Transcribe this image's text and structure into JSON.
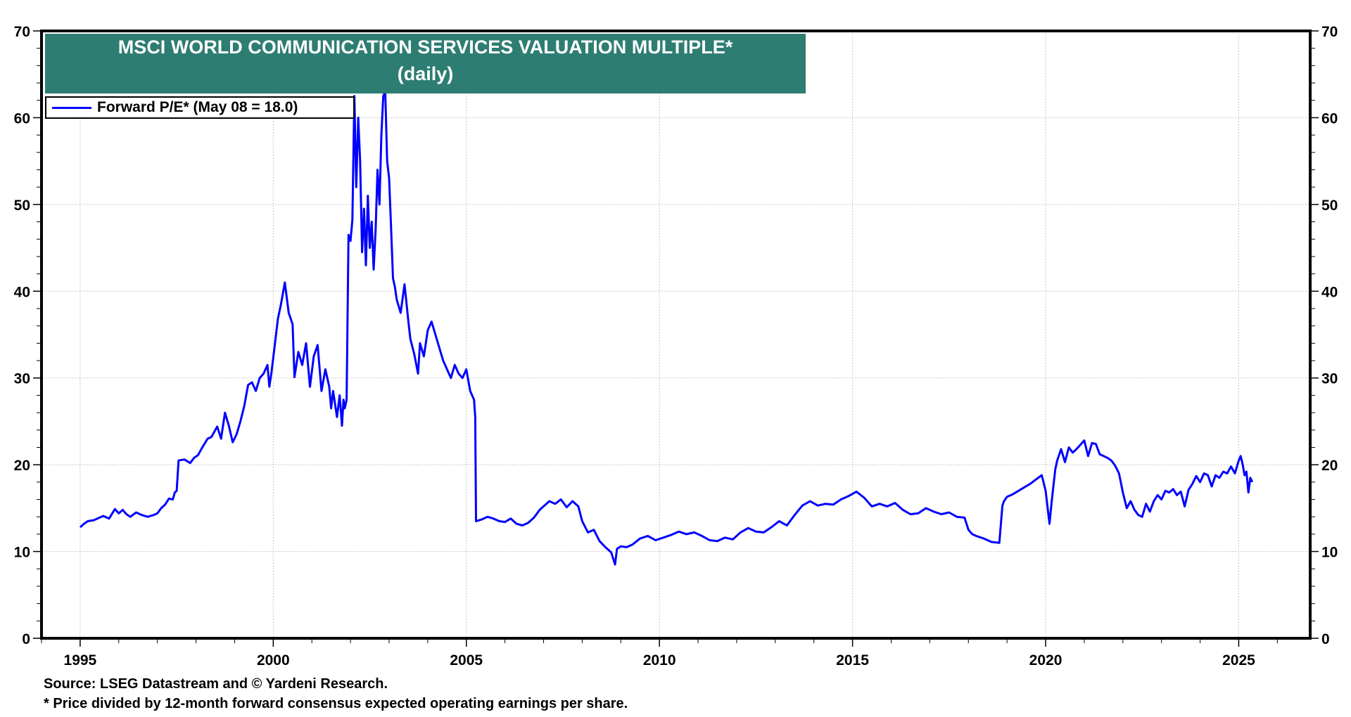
{
  "chart_data": {
    "type": "line",
    "title": "MSCI WORLD COMMUNICATION SERVICES VALUATION MULTIPLE*",
    "subtitle": "(daily)",
    "xlabel": "",
    "ylabel": "",
    "xlim": [
      1994.0,
      2026.85
    ],
    "ylim": [
      0,
      70
    ],
    "x_ticks": [
      1995,
      2000,
      2005,
      2010,
      2015,
      2020,
      2025
    ],
    "x_tick_labels": [
      "1995",
      "2000",
      "2005",
      "2010",
      "2015",
      "2020",
      "2025"
    ],
    "y_ticks": [
      0,
      10,
      20,
      30,
      40,
      50,
      60,
      70
    ],
    "y_tick_labels": [
      "0",
      "10",
      "20",
      "30",
      "40",
      "50",
      "60",
      "70"
    ],
    "y_axis_both_sides": true,
    "grid": true,
    "legend": "top-left",
    "series": [
      {
        "name": "Forward P/E* (May 08 = 18.0)",
        "color": "#0000ff",
        "x": [
          1995.0,
          1995.1,
          1995.2,
          1995.35,
          1995.5,
          1995.6,
          1995.75,
          1995.9,
          1996.0,
          1996.1,
          1996.2,
          1996.3,
          1996.45,
          1996.6,
          1996.75,
          1996.9,
          1997.0,
          1997.1,
          1997.2,
          1997.3,
          1997.4,
          1997.45,
          1997.5,
          1997.55,
          1997.7,
          1997.85,
          1997.95,
          1998.05,
          1998.15,
          1998.3,
          1998.4,
          1998.55,
          1998.65,
          1998.75,
          1998.85,
          1998.95,
          1999.05,
          1999.15,
          1999.25,
          1999.35,
          1999.45,
          1999.55,
          1999.65,
          1999.75,
          1999.85,
          1999.9,
          1999.95,
          2000.05,
          2000.12,
          2000.2,
          2000.3,
          2000.4,
          2000.5,
          2000.55,
          2000.65,
          2000.75,
          2000.85,
          2000.95,
          2001.05,
          2001.15,
          2001.25,
          2001.35,
          2001.45,
          2001.5,
          2001.55,
          2001.65,
          2001.72,
          2001.78,
          2001.82,
          2001.85,
          2001.9,
          2001.95,
          2002.0,
          2002.05,
          2002.1,
          2002.15,
          2002.2,
          2002.25,
          2002.3,
          2002.35,
          2002.4,
          2002.45,
          2002.5,
          2002.55,
          2002.6,
          2002.65,
          2002.7,
          2002.75,
          2002.8,
          2002.85,
          2002.9,
          2002.95,
          2003.0,
          2003.05,
          2003.1,
          2003.15,
          2003.2,
          2003.3,
          2003.4,
          2003.5,
          2003.55,
          2003.65,
          2003.75,
          2003.8,
          2003.9,
          2004.0,
          2004.1,
          2004.2,
          2004.3,
          2004.4,
          2004.5,
          2004.6,
          2004.7,
          2004.8,
          2004.9,
          2005.0,
          2005.1,
          2005.2,
          2005.23,
          2005.25,
          2005.4,
          2005.55,
          2005.7,
          2005.85,
          2006.0,
          2006.15,
          2006.3,
          2006.45,
          2006.6,
          2006.75,
          2006.9,
          2007.0,
          2007.15,
          2007.3,
          2007.45,
          2007.6,
          2007.75,
          2007.9,
          2008.0,
          2008.15,
          2008.3,
          2008.45,
          2008.6,
          2008.75,
          2008.85,
          2008.9,
          2009.0,
          2009.15,
          2009.3,
          2009.5,
          2009.7,
          2009.9,
          2010.1,
          2010.3,
          2010.5,
          2010.7,
          2010.9,
          2011.1,
          2011.3,
          2011.5,
          2011.7,
          2011.9,
          2012.1,
          2012.3,
          2012.5,
          2012.7,
          2012.9,
          2013.1,
          2013.3,
          2013.5,
          2013.7,
          2013.9,
          2014.1,
          2014.3,
          2014.5,
          2014.7,
          2014.9,
          2015.1,
          2015.3,
          2015.5,
          2015.7,
          2015.9,
          2016.1,
          2016.3,
          2016.5,
          2016.7,
          2016.9,
          2017.1,
          2017.3,
          2017.5,
          2017.7,
          2017.9,
          2018.0,
          2018.1,
          2018.2,
          2018.4,
          2018.6,
          2018.8,
          2018.88,
          2018.92,
          2019.0,
          2019.15,
          2019.3,
          2019.45,
          2019.6,
          2019.75,
          2019.9,
          2020.0,
          2020.1,
          2020.15,
          2020.2,
          2020.25,
          2020.3,
          2020.4,
          2020.5,
          2020.6,
          2020.7,
          2020.8,
          2020.9,
          2021.0,
          2021.1,
          2021.2,
          2021.3,
          2021.4,
          2021.5,
          2021.6,
          2021.7,
          2021.8,
          2021.9,
          2022.0,
          2022.1,
          2022.2,
          2022.3,
          2022.4,
          2022.5,
          2022.6,
          2022.7,
          2022.8,
          2022.9,
          2023.0,
          2023.1,
          2023.2,
          2023.3,
          2023.4,
          2023.5,
          2023.6,
          2023.7,
          2023.8,
          2023.9,
          2024.0,
          2024.1,
          2024.2,
          2024.3,
          2024.4,
          2024.5,
          2024.6,
          2024.7,
          2024.8,
          2024.9,
          2025.0,
          2025.05,
          2025.1,
          2025.15,
          2025.2,
          2025.25,
          2025.3,
          2025.35
        ],
        "y": [
          12.8,
          13.2,
          13.5,
          13.6,
          13.9,
          14.1,
          13.8,
          14.9,
          14.4,
          14.8,
          14.3,
          14.0,
          14.5,
          14.2,
          14.0,
          14.2,
          14.4,
          15.0,
          15.4,
          16.1,
          16.0,
          16.8,
          17.0,
          20.5,
          20.6,
          20.2,
          20.8,
          21.1,
          21.9,
          23.0,
          23.2,
          24.4,
          23.0,
          26.0,
          24.5,
          22.6,
          23.5,
          25.0,
          26.8,
          29.2,
          29.5,
          28.5,
          30.0,
          30.5,
          31.5,
          29.0,
          30.5,
          34.2,
          36.8,
          38.5,
          41.0,
          37.5,
          36.2,
          30.1,
          33.0,
          31.5,
          34.0,
          29.0,
          32.5,
          33.8,
          28.5,
          31.0,
          29.0,
          26.5,
          28.5,
          25.5,
          28.0,
          24.5,
          27.5,
          26.5,
          27.5,
          46.5,
          45.8,
          48.2,
          62.5,
          52.0,
          60.0,
          55.0,
          44.5,
          49.5,
          43.0,
          51.0,
          45.0,
          48.0,
          42.5,
          47.0,
          54.0,
          50.0,
          58.0,
          62.5,
          63.0,
          55.0,
          53.0,
          47.5,
          41.5,
          40.5,
          39.0,
          37.5,
          40.8,
          36.5,
          34.5,
          32.8,
          30.5,
          34.0,
          32.5,
          35.5,
          36.5,
          35.0,
          33.5,
          32.0,
          31.0,
          30.0,
          31.5,
          30.5,
          30.0,
          31.0,
          28.5,
          27.5,
          25.5,
          13.5,
          13.7,
          14.0,
          13.8,
          13.5,
          13.4,
          13.8,
          13.2,
          13.0,
          13.3,
          13.9,
          14.8,
          15.2,
          15.8,
          15.5,
          16.0,
          15.1,
          15.8,
          15.2,
          13.5,
          12.2,
          12.5,
          11.2,
          10.5,
          9.9,
          8.5,
          10.3,
          10.6,
          10.5,
          10.8,
          11.5,
          11.8,
          11.3,
          11.6,
          11.9,
          12.3,
          12.0,
          12.2,
          11.8,
          11.3,
          11.2,
          11.6,
          11.4,
          12.2,
          12.7,
          12.3,
          12.2,
          12.8,
          13.5,
          13.0,
          14.2,
          15.3,
          15.8,
          15.3,
          15.5,
          15.4,
          16.0,
          16.4,
          16.9,
          16.2,
          15.2,
          15.5,
          15.2,
          15.6,
          14.8,
          14.3,
          14.4,
          15.0,
          14.6,
          14.3,
          14.5,
          14.0,
          13.9,
          12.5,
          12.0,
          11.8,
          11.5,
          11.1,
          11.0,
          15.3,
          15.8,
          16.3,
          16.6,
          17.0,
          17.4,
          17.8,
          18.3,
          18.8,
          17.0,
          13.2,
          15.5,
          17.5,
          19.5,
          20.5,
          21.8,
          20.3,
          22.0,
          21.4,
          21.8,
          22.3,
          22.8,
          21.0,
          22.5,
          22.4,
          21.2,
          21.0,
          20.8,
          20.5,
          19.9,
          19.0,
          16.8,
          15.0,
          15.8,
          14.8,
          14.2,
          14.0,
          15.5,
          14.6,
          15.8,
          16.5,
          16.0,
          17.0,
          16.8,
          17.2,
          16.5,
          16.9,
          15.2,
          17.1,
          17.8,
          18.7,
          18.0,
          19.0,
          18.8,
          17.5,
          18.8,
          18.5,
          19.2,
          19.0,
          19.8,
          19.0,
          20.5,
          21.0,
          20.1,
          18.8,
          19.2,
          16.8,
          18.5,
          18.0
        ]
      }
    ],
    "annotations": []
  },
  "chart": {
    "title_line1": "MSCI WORLD COMMUNICATION SERVICES VALUATION MULTIPLE*",
    "title_line2": "(daily)",
    "legend_label": "Forward P/E* (May 08 = 18.0)",
    "source_note": "Source: LSEG Datastream and © Yardeni Research.",
    "footnote": "* Price divided by 12-month forward consensus expected operating earnings per share."
  }
}
